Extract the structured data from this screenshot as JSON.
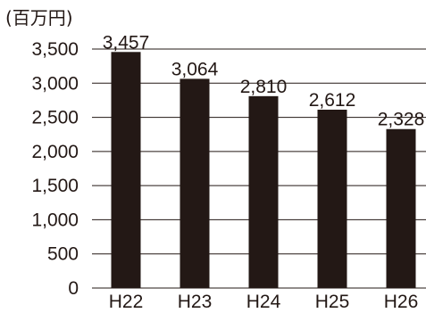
{
  "chart_data": {
    "type": "bar",
    "unit_label": "(百万円)",
    "categories": [
      "H22",
      "H23",
      "H24",
      "H25",
      "H26"
    ],
    "values": [
      3457,
      3064,
      2810,
      2612,
      2328
    ],
    "data_labels": [
      "3,457",
      "3,064",
      "2,810",
      "2,612",
      "2,328"
    ],
    "yticks": [
      0,
      500,
      1000,
      1500,
      2000,
      2500,
      3000,
      3500
    ],
    "ytick_labels": [
      "0",
      "500",
      "1,000",
      "1,500",
      "2,000",
      "2,500",
      "3,000",
      "3,500"
    ],
    "ylim": [
      0,
      3500
    ],
    "grid": true,
    "legend": "none",
    "bar_color": "#231815",
    "text_color": "#231815"
  }
}
